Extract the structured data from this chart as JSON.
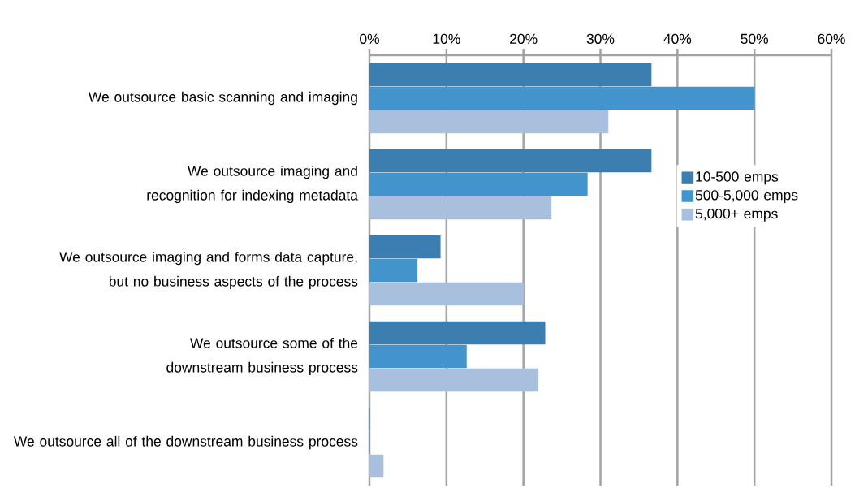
{
  "chart_data": {
    "type": "bar",
    "orientation": "horizontal",
    "categories": [
      "We outsource basic scanning and imaging",
      "We outsource imaging and recognition for indexing metadata",
      "We outsource imaging and forms data capture, but no business aspects of the process",
      "We outsource some of the downstream business process",
      "We outsource all of the downstream business process"
    ],
    "series": [
      {
        "name": "10-500 emps",
        "color": "#3c7eb0",
        "values": [
          36.6,
          36.6,
          9.2,
          22.8,
          0
        ]
      },
      {
        "name": "500-5,000 emps",
        "color": "#4393cc",
        "values": [
          50,
          28.3,
          6.2,
          12.6,
          0
        ]
      },
      {
        "name": "5,000+ emps",
        "color": "#a8bfdd",
        "values": [
          31.0,
          23.6,
          20.0,
          21.9,
          1.8
        ]
      }
    ],
    "xlim": [
      0,
      60
    ],
    "xticks": [
      {
        "value": 0,
        "label": "0%"
      },
      {
        "value": 10,
        "label": "10%"
      },
      {
        "value": 20,
        "label": "20%"
      },
      {
        "value": 30,
        "label": "30%"
      },
      {
        "value": 40,
        "label": "40%"
      },
      {
        "value": 50,
        "label": "50%"
      },
      {
        "value": 60,
        "label": "60%"
      }
    ],
    "grid": "x",
    "legend": "right"
  }
}
